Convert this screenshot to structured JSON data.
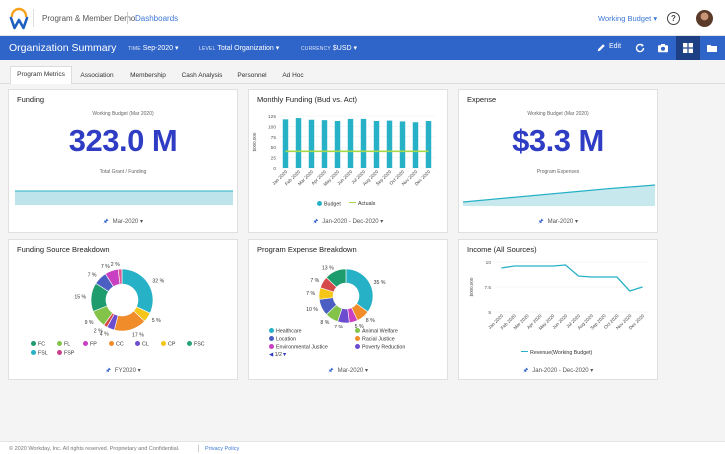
{
  "app": {
    "name": "Program & Member Demo",
    "breadcrumb": "Dashboards",
    "context_selector": "Working Budget",
    "help_label": "?"
  },
  "toolbar": {
    "title": "Organization Summary",
    "filters": [
      {
        "key": "TIME",
        "value": "Sep-2020"
      },
      {
        "key": "LEVEL",
        "value": "Total Organization"
      },
      {
        "key": "CURRENCY",
        "value": "$USD"
      }
    ],
    "edit_label": "Edit",
    "icons": [
      "pencil-icon",
      "refresh-icon",
      "camera-icon",
      "grid-layout-icon",
      "folder-icon"
    ]
  },
  "tabs": [
    "Program Metrics",
    "Association",
    "Membership",
    "Cash Analysis",
    "Personnel",
    "Ad Hoc"
  ],
  "active_tab": "Program Metrics",
  "cards": {
    "funding": {
      "title": "Funding",
      "subtitle": "Working Budget (Mar 2020)",
      "value": "323.0 M",
      "caption": "Total Grant / Funding",
      "period": "Mar-2020",
      "color": "#2f3cc4",
      "area_color": "#bde4ea"
    },
    "monthly": {
      "title": "Monthly Funding (Bud vs. Act)",
      "period": "Jan-2020 - Dec-2020"
    },
    "expense": {
      "title": "Expense",
      "subtitle": "Working Budget (Mar 2020)",
      "value": "$3.3 M",
      "caption": "Program Expenses",
      "period": "Mar-2020",
      "area_color": "#c7e9ee"
    },
    "funding_source": {
      "title": "Funding Source Breakdown",
      "period": "FY2020"
    },
    "program_expense": {
      "title": "Program Expense Breakdown",
      "period": "Mar-2020",
      "pager": "1/2"
    },
    "income": {
      "title": "Income (All Sources)",
      "period": "Jan-2020 - Dec-2020"
    }
  },
  "chart_data": [
    {
      "type": "bar",
      "title": "Monthly Funding (Bud vs. Act)",
      "ylabel": "$000,000",
      "ylim": [
        0,
        125
      ],
      "yticks": [
        0,
        25,
        50,
        75,
        100,
        125
      ],
      "categories": [
        "Jan 2020",
        "Feb 2020",
        "Mar 2020",
        "Apr 2020",
        "May 2020",
        "Jun 2020",
        "Jul 2020",
        "Aug 2020",
        "Sep 2020",
        "Oct 2020",
        "Nov 2020",
        "Dec 2020"
      ],
      "series": [
        {
          "name": "Budget",
          "kind": "bar",
          "color": "#27b1c6",
          "values": [
            117,
            120,
            116,
            115,
            113,
            118,
            118,
            113,
            114,
            112,
            110,
            113
          ]
        },
        {
          "name": "Actuals",
          "kind": "line",
          "color": "#a6d84a",
          "values": [
            40,
            40,
            40,
            40,
            40,
            40,
            40,
            40,
            40,
            40,
            40,
            40
          ]
        }
      ]
    },
    {
      "type": "pie",
      "title": "Funding Source Breakdown",
      "slices": [
        {
          "label": "32 %",
          "value": 32,
          "color": "#27b1c6"
        },
        {
          "label": "5 %",
          "value": 5,
          "color": "#f5c518"
        },
        {
          "label": "17 %",
          "value": 17,
          "color": "#f08c2a"
        },
        {
          "label": "4 %",
          "value": 4,
          "color": "#6c4ccf"
        },
        {
          "label": "2 %",
          "value": 2,
          "color": "#d64a4a"
        },
        {
          "label": "9 %",
          "value": 9,
          "color": "#83c34a"
        },
        {
          "label": "15 %",
          "value": 15,
          "color": "#1e9c6e"
        },
        {
          "label": "7 %",
          "value": 7,
          "color": "#4a5fc1"
        },
        {
          "label": "7 %",
          "value": 7,
          "color": "#c83fc2"
        },
        {
          "label": "2 %",
          "value": 2,
          "color": "#e05a9a"
        }
      ],
      "legend": [
        {
          "name": "FC",
          "color": "#1e9c6e"
        },
        {
          "name": "FL",
          "color": "#83c34a"
        },
        {
          "name": "FP",
          "color": "#c83fc2"
        },
        {
          "name": "CC",
          "color": "#f08c2a"
        },
        {
          "name": "CL",
          "color": "#6c4ccf"
        },
        {
          "name": "CP",
          "color": "#f5c518"
        },
        {
          "name": "FSC",
          "color": "#27a37a"
        },
        {
          "name": "FSL",
          "color": "#27b1c6"
        },
        {
          "name": "FSP",
          "color": "#c83f8a"
        }
      ]
    },
    {
      "type": "pie",
      "title": "Program Expense Breakdown",
      "slices": [
        {
          "label": "35 %",
          "value": 35,
          "color": "#27b1c6"
        },
        {
          "label": "8 %",
          "value": 8,
          "color": "#f08c2a"
        },
        {
          "label": "5 %",
          "value": 5,
          "color": "#c83fc2"
        },
        {
          "label": "7 %",
          "value": 7,
          "color": "#6c4ccf"
        },
        {
          "label": "8 %",
          "value": 8,
          "color": "#83c34a"
        },
        {
          "label": "10 %",
          "value": 10,
          "color": "#4a5fc1"
        },
        {
          "label": "7 %",
          "value": 7,
          "color": "#f5c518"
        },
        {
          "label": "7 %",
          "value": 7,
          "color": "#d64a4a"
        },
        {
          "label": "13 %",
          "value": 13,
          "color": "#1e9c6e"
        }
      ],
      "legend": [
        {
          "name": "Healthcare",
          "color": "#27b1c6"
        },
        {
          "name": "Animal Welfare",
          "color": "#83c34a"
        },
        {
          "name": "Location",
          "color": "#4a5fc1"
        },
        {
          "name": "Racial Justice",
          "color": "#f08c2a"
        },
        {
          "name": "Environmental Justice",
          "color": "#c83fc2"
        },
        {
          "name": "Poverty Reduction",
          "color": "#6c4ccf"
        }
      ]
    },
    {
      "type": "line",
      "title": "Income (All Sources)",
      "ylabel": "$000,000",
      "ylim": [
        5,
        10
      ],
      "yticks": [
        5,
        7.5,
        10
      ],
      "x": [
        "Jan 2020",
        "Feb 2020",
        "Mar 2020",
        "Apr 2020",
        "May 2020",
        "Jun 2020",
        "Jul 2020",
        "Aug 2020",
        "Sep 2020",
        "Oct 2020",
        "Nov 2020",
        "Dec 2020"
      ],
      "series": [
        {
          "name": "Revenue(Working Budget)",
          "color": "#27b1c6",
          "values": [
            9.4,
            9.6,
            9.6,
            9.6,
            9.6,
            9.7,
            8.6,
            8.5,
            8.5,
            8.5,
            7.1,
            7.5
          ]
        }
      ]
    }
  ],
  "footer": {
    "copyright": "© 2020 Workday, Inc. All rights reserved. Proprietary and Confidential.",
    "privacy": "Privacy Policy"
  }
}
